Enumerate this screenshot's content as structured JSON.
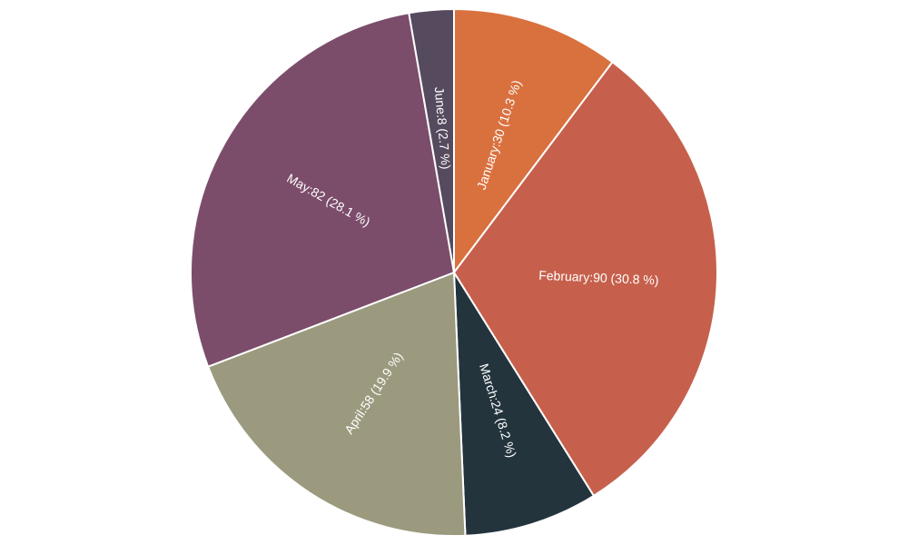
{
  "chart_data": {
    "type": "pie",
    "start_angle_deg": 0,
    "direction": "clockwise",
    "slices": [
      {
        "name": "January",
        "value": 30,
        "percent_text": "10.3 %",
        "label": "January:30 (10.3 %)",
        "color": "#d9713e"
      },
      {
        "name": "February",
        "value": 90,
        "percent_text": "30.8 %",
        "label": "February:90 (30.8 %)",
        "color": "#c6604c"
      },
      {
        "name": "March",
        "value": 24,
        "percent_text": "8.2 %",
        "label": "March:24 (8.2 %)",
        "color": "#23343d"
      },
      {
        "name": "April",
        "value": 58,
        "percent_text": "19.9 %",
        "label": "April:58 (19.9 %)",
        "color": "#9b9a7e"
      },
      {
        "name": "May",
        "value": 82,
        "percent_text": "28.1 %",
        "label": "May:82 (28.1 %)",
        "color": "#7b4d6a"
      },
      {
        "name": "June",
        "value": 8,
        "percent_text": "2.7 %",
        "label": "June:8 (2.7 %)",
        "color": "#564a5e"
      }
    ]
  }
}
